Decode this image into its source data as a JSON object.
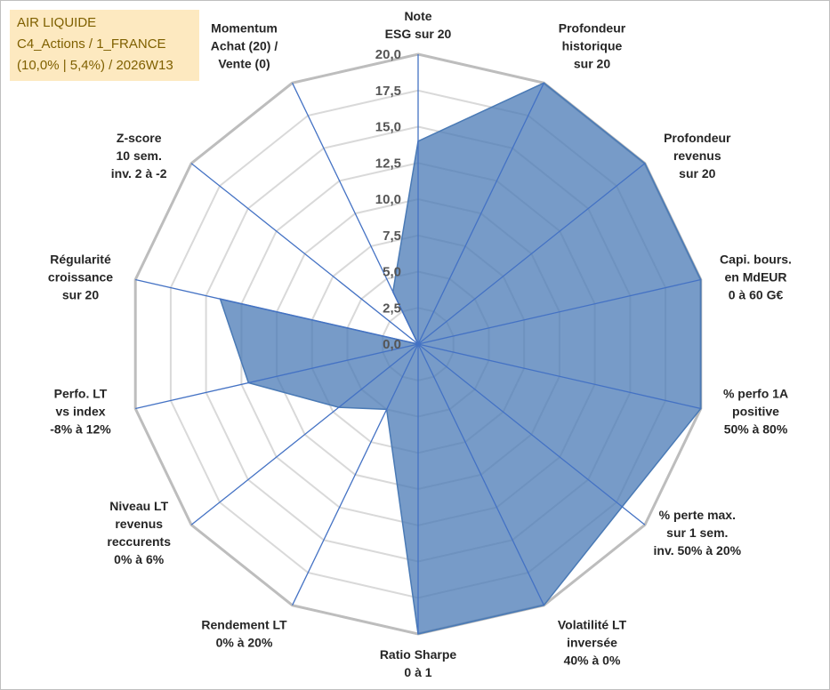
{
  "info": {
    "line1": "AIR LIQUIDE",
    "line2": "C4_Actions / 1_FRANCE",
    "line3": "(10,0% | 5,4%) / 2026W13"
  },
  "chart_data": {
    "type": "radar",
    "title": "",
    "rlim": [
      0,
      20
    ],
    "grid": true,
    "tick_labels": [
      "0,0",
      "2,5",
      "5,0",
      "7,5",
      "10,0",
      "12,5",
      "15,0",
      "17,5",
      "20,0"
    ],
    "categories": [
      [
        "Note",
        "ESG sur 20"
      ],
      [
        "Profondeur",
        "historique",
        "sur 20"
      ],
      [
        "Profondeur",
        "revenus",
        "sur 20"
      ],
      [
        "Capi. bours.",
        "en MdEUR",
        "0 à 60 G€"
      ],
      [
        "% perfo 1A",
        "positive",
        "50% à 80%"
      ],
      [
        "% perte max.",
        "sur 1 sem.",
        "inv. 50% à 20%"
      ],
      [
        "Volatilité LT",
        "inversée",
        "40% à 0%"
      ],
      [
        "Ratio Sharpe",
        "0 à 1"
      ],
      [
        "Rendement LT",
        "0% à 20%"
      ],
      [
        "Niveau LT",
        "revenus",
        "reccurents",
        "0% à 6%"
      ],
      [
        "Perfo. LT",
        "vs index",
        "-8% à 12%"
      ],
      [
        "Régularité",
        "croissance",
        "sur 20"
      ],
      [
        "Z-score",
        "10 sem.",
        "inv. 2 à -2"
      ],
      [
        "Momentum",
        "Achat (20) /",
        "Vente (0)"
      ]
    ],
    "series": [
      {
        "name": "AIR LIQUIDE",
        "color": "#4a7ab5",
        "values": [
          14.0,
          20.0,
          20.0,
          20.0,
          20.0,
          18.0,
          20.0,
          20.0,
          5.0,
          7.0,
          12.0,
          14.0,
          0.0,
          4.0
        ]
      }
    ]
  }
}
